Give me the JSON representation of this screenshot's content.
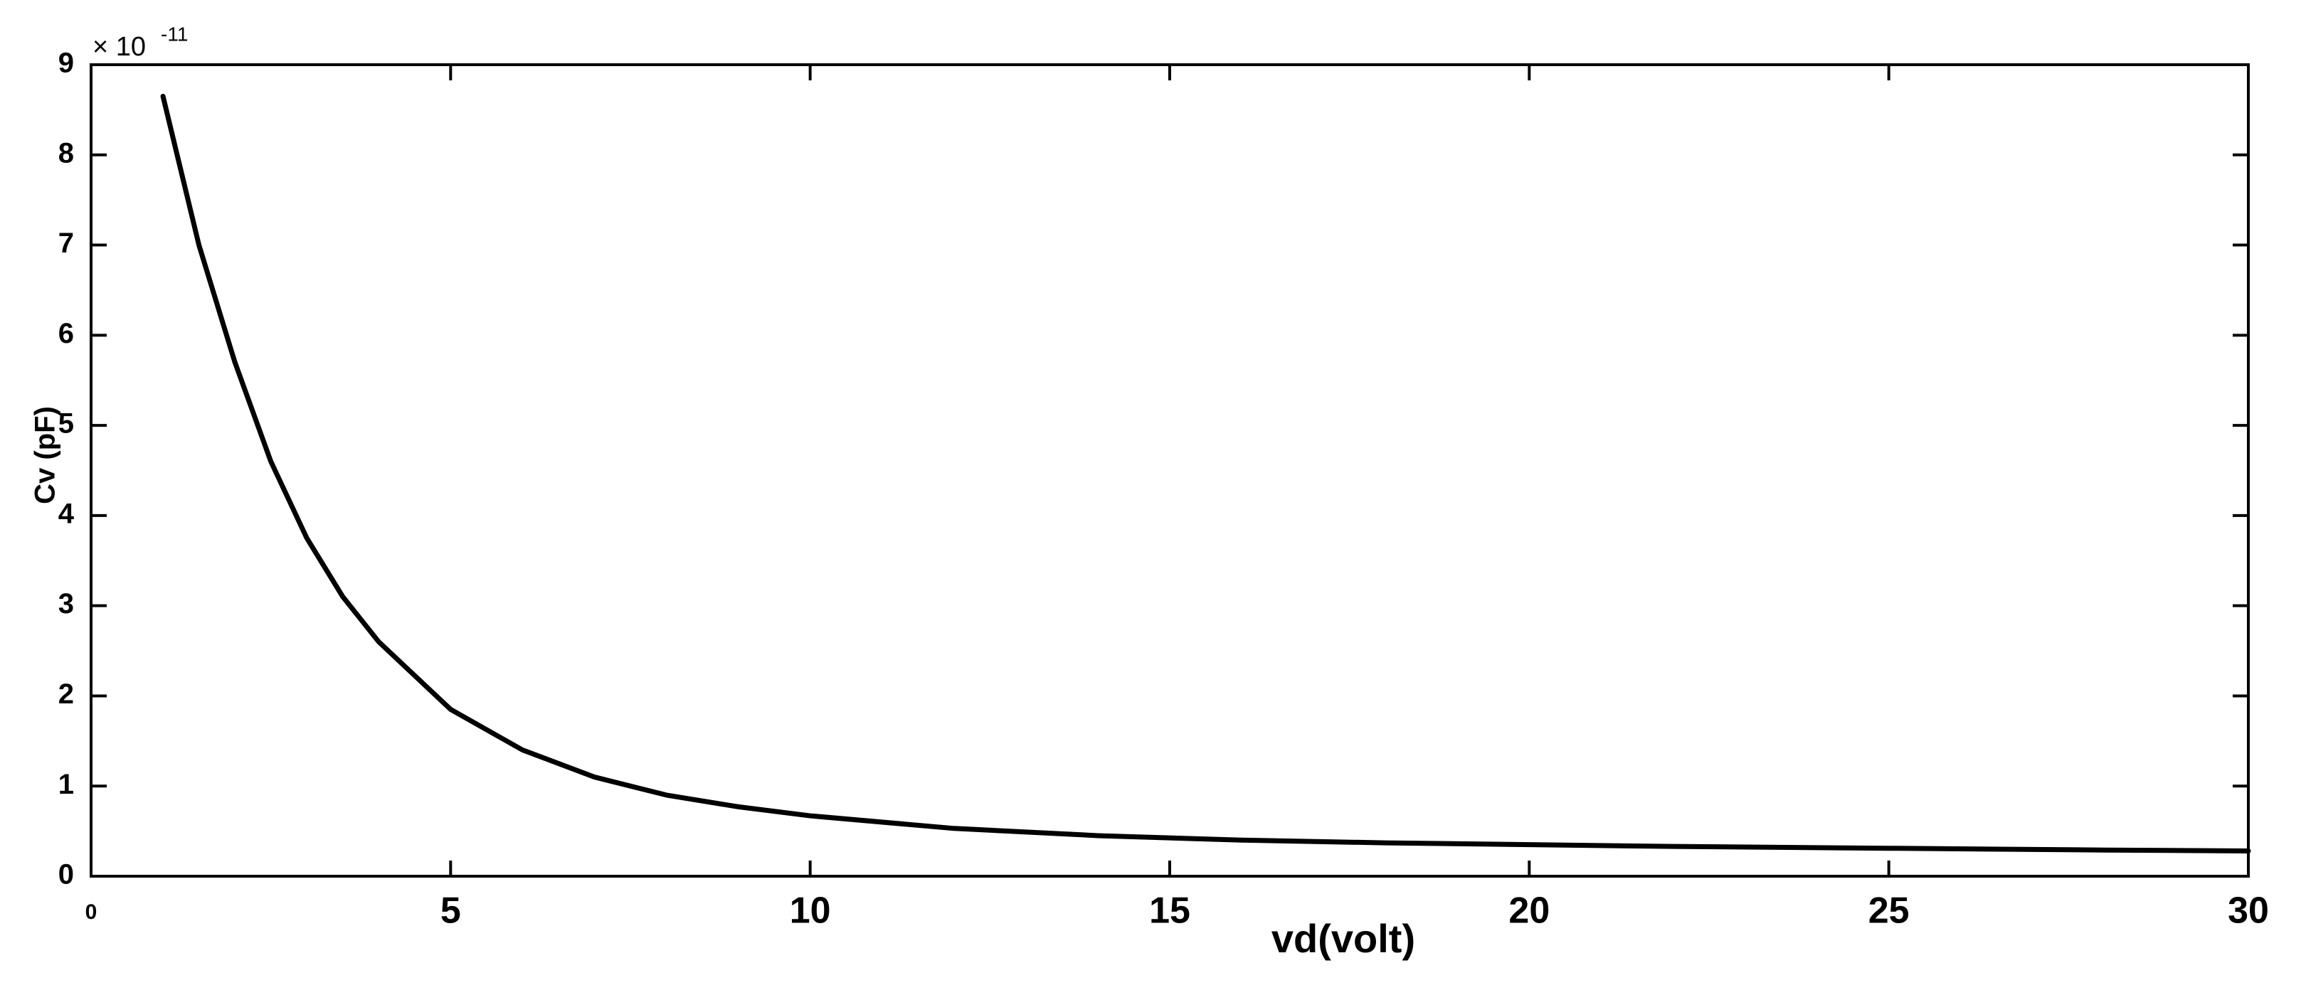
{
  "chart_data": {
    "type": "line",
    "x_label": "vd(volt)",
    "y_label": "Cv (pF)",
    "y_exponent_base": "× 10",
    "y_exponent": "-11",
    "xlim": [
      0,
      30
    ],
    "xticks": [
      0,
      5,
      10,
      15,
      20,
      25,
      30
    ],
    "ylim": [
      0,
      9
    ],
    "yticks": [
      0,
      1,
      2,
      3,
      4,
      5,
      6,
      7,
      8,
      9
    ],
    "grid": false,
    "x": [
      1,
      1.5,
      2,
      2.5,
      3,
      3.5,
      4,
      5,
      6,
      7,
      8,
      9,
      10,
      12,
      14,
      16,
      18,
      20,
      22,
      25,
      28,
      30
    ],
    "series": [
      {
        "color": "#000000",
        "values": [
          8.65,
          7.0,
          5.7,
          4.6,
          3.75,
          3.1,
          2.6,
          1.85,
          1.4,
          1.1,
          0.9,
          0.77,
          0.67,
          0.53,
          0.45,
          0.4,
          0.37,
          0.35,
          0.33,
          0.31,
          0.29,
          0.28
        ]
      }
    ]
  }
}
